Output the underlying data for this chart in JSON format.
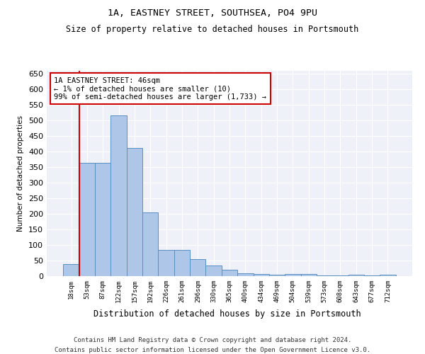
{
  "title1": "1A, EASTNEY STREET, SOUTHSEA, PO4 9PU",
  "title2": "Size of property relative to detached houses in Portsmouth",
  "xlabel": "Distribution of detached houses by size in Portsmouth",
  "ylabel": "Number of detached properties",
  "bar_labels": [
    "18sqm",
    "53sqm",
    "87sqm",
    "122sqm",
    "157sqm",
    "192sqm",
    "226sqm",
    "261sqm",
    "296sqm",
    "330sqm",
    "365sqm",
    "400sqm",
    "434sqm",
    "469sqm",
    "504sqm",
    "539sqm",
    "573sqm",
    "608sqm",
    "643sqm",
    "677sqm",
    "712sqm"
  ],
  "bar_values": [
    38,
    365,
    365,
    517,
    411,
    205,
    84,
    84,
    55,
    35,
    20,
    10,
    7,
    5,
    7,
    7,
    2,
    2,
    5,
    2,
    5
  ],
  "bar_color": "#aec6e8",
  "bar_edge_color": "#5a8fc2",
  "annotation_text_line1": "1A EASTNEY STREET: 46sqm",
  "annotation_text_line2": "← 1% of detached houses are smaller (10)",
  "annotation_text_line3": "99% of semi-detached houses are larger (1,733) →",
  "annotation_box_edge_color": "#cc0000",
  "vline_color": "#cc0000",
  "bg_color": "#eef2f8",
  "footer_line1": "Contains HM Land Registry data © Crown copyright and database right 2024.",
  "footer_line2": "Contains public sector information licensed under the Open Government Licence v3.0.",
  "ylim_max": 660,
  "ytick_step": 50
}
